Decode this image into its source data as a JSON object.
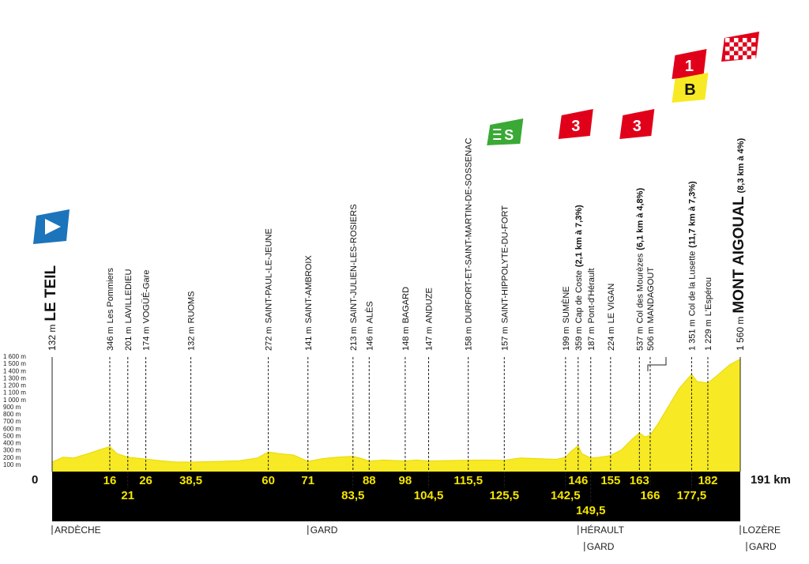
{
  "chart_data": {
    "type": "area",
    "title": "",
    "xlabel": "",
    "ylabel": "",
    "xlim": [
      0,
      191
    ],
    "ylim": [
      0,
      1600
    ],
    "yticks": [
      "100 m",
      "200 m",
      "300 m",
      "400 m",
      "500 m",
      "600 m",
      "700 m",
      "800 m",
      "900 m",
      "1 000 m",
      "1 100 m",
      "1 200 m",
      "1 300 m",
      "1 400 m",
      "1 500 m",
      "1 600 m"
    ],
    "start_label": "0",
    "end_label": "191 km",
    "colors": {
      "profile": "#f7ea24",
      "band": "#000000",
      "km_text": "#f4e500",
      "sprint": "#3aa935",
      "climb": "#e1001a",
      "bonus": "#f7ea24",
      "start_flag": "#1c74bb"
    },
    "profile": [
      [
        0,
        132
      ],
      [
        3,
        200
      ],
      [
        6,
        190
      ],
      [
        10,
        250
      ],
      [
        13,
        300
      ],
      [
        16,
        346
      ],
      [
        18,
        250
      ],
      [
        21,
        201
      ],
      [
        24,
        185
      ],
      [
        26,
        174
      ],
      [
        30,
        150
      ],
      [
        34,
        135
      ],
      [
        38.5,
        132
      ],
      [
        45,
        140
      ],
      [
        52,
        150
      ],
      [
        57,
        190
      ],
      [
        60,
        272
      ],
      [
        63,
        250
      ],
      [
        67,
        230
      ],
      [
        71,
        141
      ],
      [
        75,
        180
      ],
      [
        79,
        200
      ],
      [
        83.5,
        213
      ],
      [
        86,
        180
      ],
      [
        88,
        146
      ],
      [
        92,
        160
      ],
      [
        98,
        148
      ],
      [
        101,
        160
      ],
      [
        104.5,
        147
      ],
      [
        108,
        150
      ],
      [
        112,
        155
      ],
      [
        115.5,
        158
      ],
      [
        120,
        160
      ],
      [
        125.5,
        157
      ],
      [
        130,
        190
      ],
      [
        135,
        180
      ],
      [
        140,
        170
      ],
      [
        142.5,
        199
      ],
      [
        144,
        280
      ],
      [
        146,
        359
      ],
      [
        147,
        250
      ],
      [
        149.5,
        187
      ],
      [
        152,
        200
      ],
      [
        155,
        224
      ],
      [
        158,
        300
      ],
      [
        161,
        450
      ],
      [
        163,
        537
      ],
      [
        164.5,
        480
      ],
      [
        166,
        506
      ],
      [
        168,
        650
      ],
      [
        171,
        900
      ],
      [
        174,
        1150
      ],
      [
        177.5,
        1351
      ],
      [
        179,
        1250
      ],
      [
        182,
        1229
      ],
      [
        185,
        1350
      ],
      [
        188,
        1480
      ],
      [
        191,
        1560
      ]
    ],
    "points": [
      {
        "km": 0,
        "km_label": "0",
        "row": 0,
        "alt": 132,
        "label": "132 m",
        "place": "LE TEIL",
        "bold": true
      },
      {
        "km": 16,
        "km_label": "16",
        "row": 1,
        "alt": 346,
        "label": "346 m",
        "place": "Les Pommiers"
      },
      {
        "km": 21,
        "km_label": "21",
        "row": 2,
        "alt": 201,
        "label": "201 m",
        "place": "LAVILLEDIEU"
      },
      {
        "km": 26,
        "km_label": "26",
        "row": 1,
        "alt": 174,
        "label": "174 m",
        "place": "VOGÜÉ-Gare"
      },
      {
        "km": 38.5,
        "km_label": "38,5",
        "row": 1,
        "alt": 132,
        "label": "132 m",
        "place": "RUOMS"
      },
      {
        "km": 60,
        "km_label": "60",
        "row": 1,
        "alt": 272,
        "label": "272 m",
        "place": "SAINT-PAUL-LE-JEUNE"
      },
      {
        "km": 71,
        "km_label": "71",
        "row": 1,
        "alt": 141,
        "label": "141 m",
        "place": "SAINT-AMBROIX"
      },
      {
        "km": 83.5,
        "km_label": "83,5",
        "row": 2,
        "alt": 213,
        "label": "213 m",
        "place": "SAINT-JULIEN-LES-ROSIERS"
      },
      {
        "km": 88,
        "km_label": "88",
        "row": 1,
        "alt": 146,
        "label": "146 m",
        "place": "ALÈS"
      },
      {
        "km": 98,
        "km_label": "98",
        "row": 1,
        "alt": 148,
        "label": "148 m",
        "place": "BAGARD"
      },
      {
        "km": 104.5,
        "km_label": "104,5",
        "row": 2,
        "alt": 147,
        "label": "147 m",
        "place": "ANDUZE"
      },
      {
        "km": 115.5,
        "km_label": "115,5",
        "row": 1,
        "alt": 158,
        "label": "158 m",
        "place": "DURFORT-ET-SAINT-MARTIN-DE-SOSSENAC"
      },
      {
        "km": 125.5,
        "km_label": "125,5",
        "row": 2,
        "alt": 157,
        "label": "157 m",
        "place": "SAINT-HIPPOLYTE-DU-FORT"
      },
      {
        "km": 142.5,
        "km_label": "142,5",
        "row": 2,
        "alt": 199,
        "label": "199 m",
        "place": "SUMÈNE"
      },
      {
        "km": 146,
        "km_label": "146",
        "row": 1,
        "alt": 359,
        "label": "359 m",
        "place": "Cap de Coste",
        "detail": "(2,1 km à 7,3%)"
      },
      {
        "km": 149.5,
        "km_label": "149,5",
        "row": 3,
        "alt": 187,
        "label": "187 m",
        "place": "Pont-d'Hérault"
      },
      {
        "km": 155,
        "km_label": "155",
        "row": 1,
        "alt": 224,
        "label": "224 m",
        "place": "LE VIGAN"
      },
      {
        "km": 163,
        "km_label": "163",
        "row": 1,
        "alt": 537,
        "label": "537 m",
        "place": "Col des Mourèzes",
        "detail": "(6,1 km à 4,8%)"
      },
      {
        "km": 166,
        "km_label": "166",
        "row": 2,
        "alt": 506,
        "label": "506 m",
        "place": "MANDAGOUT"
      },
      {
        "km": 177.5,
        "km_label": "177,5",
        "row": 2,
        "alt": 1351,
        "label": "1 351 m",
        "place": "Col de la Lusette",
        "detail": "(11,7 km à 7,3%)"
      },
      {
        "km": 182,
        "km_label": "182",
        "row": 1,
        "alt": 1229,
        "label": "1 229 m",
        "place": "L'Espérou"
      },
      {
        "km": 191,
        "km_label": "",
        "row": 0,
        "alt": 1560,
        "label": "1 560 m",
        "place": "MONT AIGOUAL",
        "detail": "(8,3 km à 4%)",
        "bold": true
      }
    ],
    "markers": [
      {
        "km": 0,
        "kind": "start"
      },
      {
        "km": 125.5,
        "kind": "sprint",
        "text": "S"
      },
      {
        "km": 146,
        "kind": "climb",
        "text": "3"
      },
      {
        "km": 163,
        "kind": "climb",
        "text": "3"
      },
      {
        "km": 177.5,
        "kind": "climb",
        "text": "1"
      },
      {
        "km": 177.5,
        "kind": "bonus",
        "text": "B"
      },
      {
        "km": 191,
        "kind": "finish"
      }
    ],
    "regions": [
      {
        "km": 0,
        "lines": [
          "ARDÈCHE"
        ]
      },
      {
        "km": 71,
        "lines": [
          "GARD"
        ]
      },
      {
        "km": 146,
        "lines": [
          "HÉRAULT",
          "GARD"
        ]
      },
      {
        "km": 191,
        "lines": [
          "LOZÈRE",
          "GARD"
        ]
      }
    ]
  }
}
